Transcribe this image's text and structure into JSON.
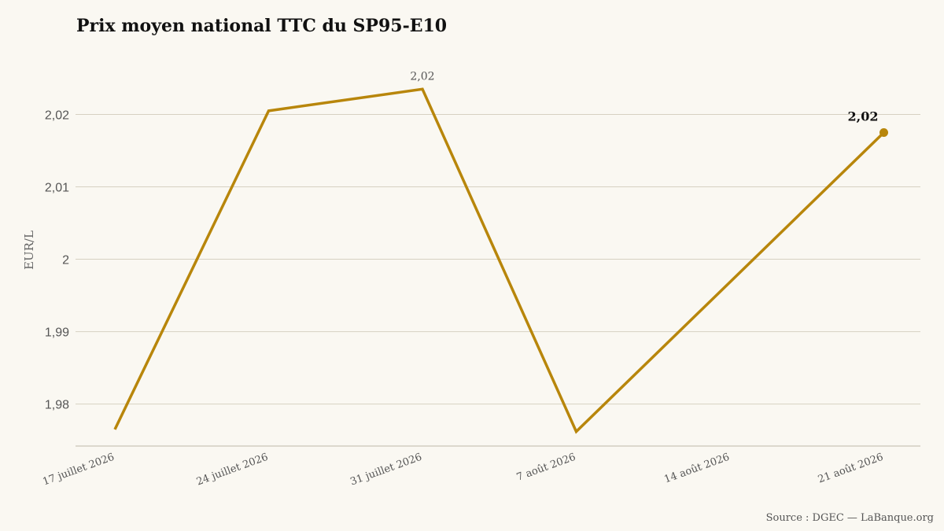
{
  "source": "Source : DGEC — LaBanque.org",
  "chart_data": {
    "type": "line",
    "title": "Prix moyen national TTC du SP95-E10",
    "ylabel": "EUR/L",
    "xlabel": "",
    "categories": [
      "17 juillet 2026",
      "24 juillet 2026",
      "31 juillet 2026",
      "7 août 2026",
      "14 août 2026",
      "21 août 2026"
    ],
    "x": [
      "2026-07-17",
      "2026-07-24",
      "2026-07-31",
      "2026-08-07",
      "2026-08-21"
    ],
    "series": [
      {
        "values": [
          1.9765,
          2.0205,
          2.0235,
          1.9762,
          2.0175
        ],
        "color": "#b8860b"
      }
    ],
    "y_ticks": [
      1.98,
      1.99,
      2.0,
      2.01,
      2.02
    ],
    "y_tick_labels": [
      "1,98",
      "1,99",
      "2",
      "2,01",
      "2,02"
    ],
    "ylim": [
      1.9742,
      2.0282
    ],
    "grid": true,
    "annotations": [
      {
        "x": "2026-07-31",
        "text": "2,02",
        "style": "normal"
      },
      {
        "x": "2026-08-21",
        "text": "2,02",
        "style": "bold"
      }
    ]
  }
}
